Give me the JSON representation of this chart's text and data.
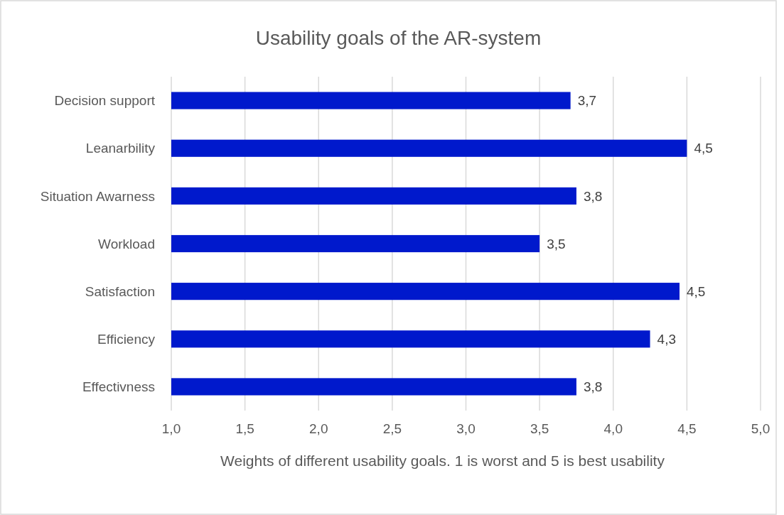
{
  "chart_data": {
    "type": "bar",
    "orientation": "horizontal",
    "title": "Usability goals of the AR-system",
    "xlabel": "Weights of different usability goals. 1 is worst and 5 is best usability",
    "categories": [
      "Decision support",
      "Leanarbility",
      "Situation Awarness",
      "Workload",
      "Satisfaction",
      "Efficiency",
      "Effectivness"
    ],
    "values": [
      3.71,
      4.5,
      3.75,
      3.5,
      4.45,
      4.25,
      3.75
    ],
    "value_labels": [
      "3,7",
      "4,5",
      "3,8",
      "3,5",
      "4,5",
      "4,3",
      "3,8"
    ],
    "color": "#0019cc",
    "xlim": [
      1,
      5
    ],
    "xticks": [
      {
        "value": 1,
        "label": "1,0"
      },
      {
        "value": 1.5,
        "label": "1,5"
      },
      {
        "value": 2,
        "label": "2,0"
      },
      {
        "value": 2.5,
        "label": "2,5"
      },
      {
        "value": 3,
        "label": "3,0"
      },
      {
        "value": 3.5,
        "label": "3,5"
      },
      {
        "value": 4,
        "label": "4,0"
      },
      {
        "value": 4.5,
        "label": "4,5"
      },
      {
        "value": 5,
        "label": "5,0"
      }
    ],
    "grid": "x"
  }
}
